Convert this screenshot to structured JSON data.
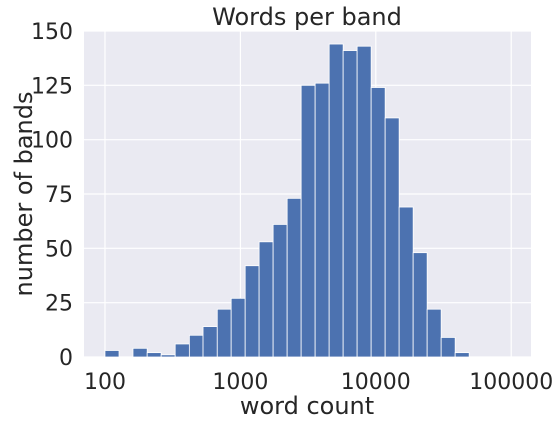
{
  "chart_data": {
    "type": "bar",
    "title": "Words per band",
    "xlabel": "word count",
    "ylabel": "number of bands",
    "x_scale": "log",
    "xlim": [
      70,
      140000
    ],
    "ylim": [
      0,
      150
    ],
    "x_ticks": [
      100,
      1000,
      10000,
      100000
    ],
    "x_tick_labels": [
      "100",
      "1000",
      "10000",
      "100000"
    ],
    "y_ticks": [
      0,
      25,
      50,
      75,
      100,
      125,
      150
    ],
    "y_tick_labels": [
      "0",
      "25",
      "50",
      "75",
      "100",
      "125",
      "150"
    ],
    "grid": true,
    "colors": {
      "bar": "#4c72b0",
      "bar_edge": "#ffffff",
      "plot_background": "#eaeaf2",
      "grid": "#ffffff",
      "text": "#262626"
    },
    "bins": [
      {
        "x0": 100,
        "x1": 127,
        "value": 3
      },
      {
        "x0": 127,
        "x1": 161,
        "value": 0
      },
      {
        "x0": 161,
        "x1": 205,
        "value": 4
      },
      {
        "x0": 205,
        "x1": 260,
        "value": 2
      },
      {
        "x0": 260,
        "x1": 330,
        "value": 1
      },
      {
        "x0": 330,
        "x1": 420,
        "value": 6
      },
      {
        "x0": 420,
        "x1": 530,
        "value": 10
      },
      {
        "x0": 530,
        "x1": 675,
        "value": 14
      },
      {
        "x0": 675,
        "x1": 855,
        "value": 22
      },
      {
        "x0": 855,
        "x1": 1085,
        "value": 27
      },
      {
        "x0": 1085,
        "x1": 1375,
        "value": 42
      },
      {
        "x0": 1375,
        "x1": 1745,
        "value": 53
      },
      {
        "x0": 1745,
        "x1": 2215,
        "value": 61
      },
      {
        "x0": 2215,
        "x1": 2810,
        "value": 73
      },
      {
        "x0": 2810,
        "x1": 3565,
        "value": 125
      },
      {
        "x0": 3565,
        "x1": 4525,
        "value": 126
      },
      {
        "x0": 4525,
        "x1": 5740,
        "value": 144
      },
      {
        "x0": 5740,
        "x1": 7280,
        "value": 141
      },
      {
        "x0": 7280,
        "x1": 9240,
        "value": 143
      },
      {
        "x0": 9240,
        "x1": 11725,
        "value": 124
      },
      {
        "x0": 11725,
        "x1": 14875,
        "value": 110
      },
      {
        "x0": 14875,
        "x1": 18875,
        "value": 69
      },
      {
        "x0": 18875,
        "x1": 23950,
        "value": 48
      },
      {
        "x0": 23950,
        "x1": 30390,
        "value": 22
      },
      {
        "x0": 30390,
        "x1": 38560,
        "value": 9
      },
      {
        "x0": 38560,
        "x1": 48930,
        "value": 2
      }
    ]
  }
}
